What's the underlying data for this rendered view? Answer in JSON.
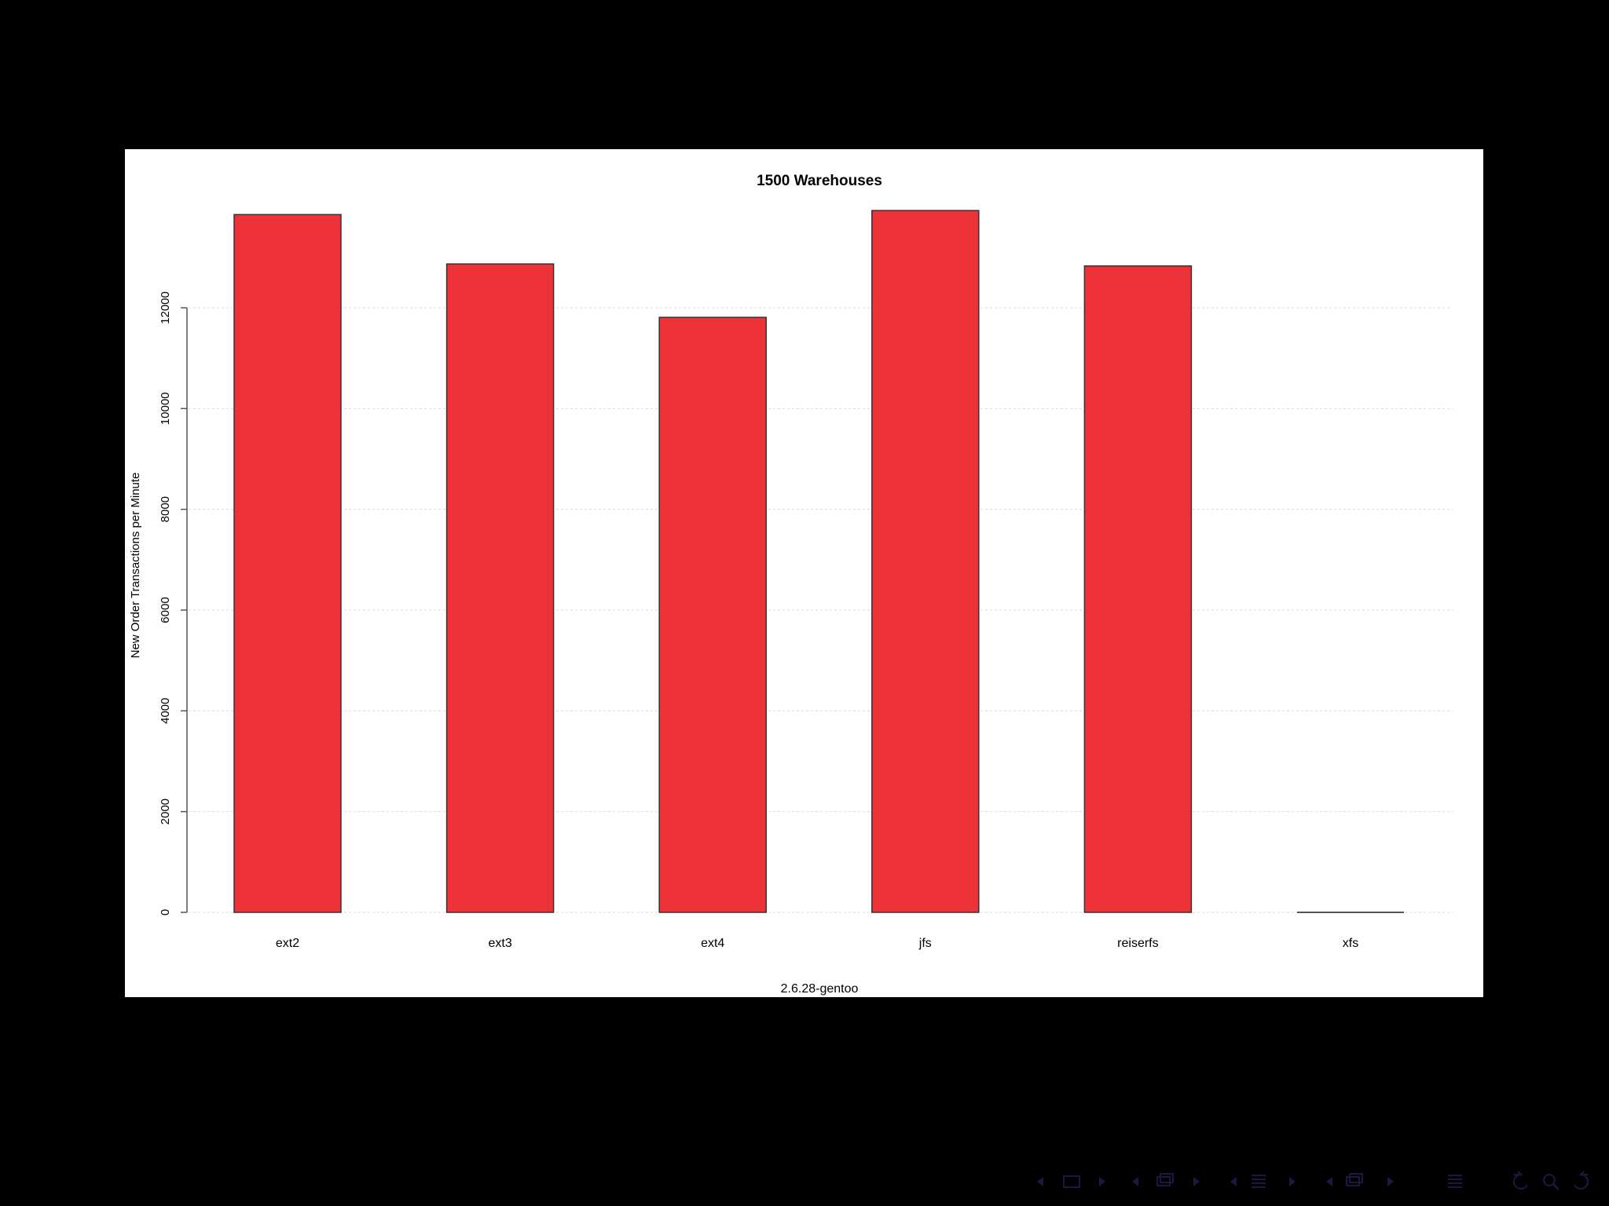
{
  "chart_data": {
    "type": "bar",
    "title": "1500 Warehouses",
    "xlabel": "2.6.28-gentoo",
    "ylabel": "New Order Transactions per Minute",
    "categories": [
      "ext2",
      "ext3",
      "ext4",
      "jfs",
      "reiserfs",
      "xfs"
    ],
    "values": [
      13850,
      12870,
      11810,
      13930,
      12830,
      0
    ],
    "ylim": [
      0,
      14000
    ],
    "yticks": [
      0,
      2000,
      4000,
      6000,
      8000,
      10000,
      12000
    ],
    "ytick_labels": [
      "0",
      "2000",
      "4000",
      "6000",
      "8000",
      "10000",
      "12000"
    ],
    "grid": true,
    "legend": "none"
  },
  "colors": {
    "bar_fill": "#ee3338",
    "bar_stroke": "#333333",
    "grid": "#d9d9d9",
    "background": "#000000",
    "plot_background": "#ffffff"
  },
  "navigation": {
    "icons": [
      "arrow-left-icon",
      "frame-icon",
      "arrow-right-icon",
      "arrow-left-icon",
      "subsection-icon",
      "arrow-right-icon",
      "arrow-left-icon",
      "section-icon",
      "arrow-right-icon",
      "arrow-left-icon",
      "subsection-icon",
      "arrow-right-icon",
      "toc-icon",
      "back-icon",
      "search-icon",
      "forward-icon"
    ]
  }
}
